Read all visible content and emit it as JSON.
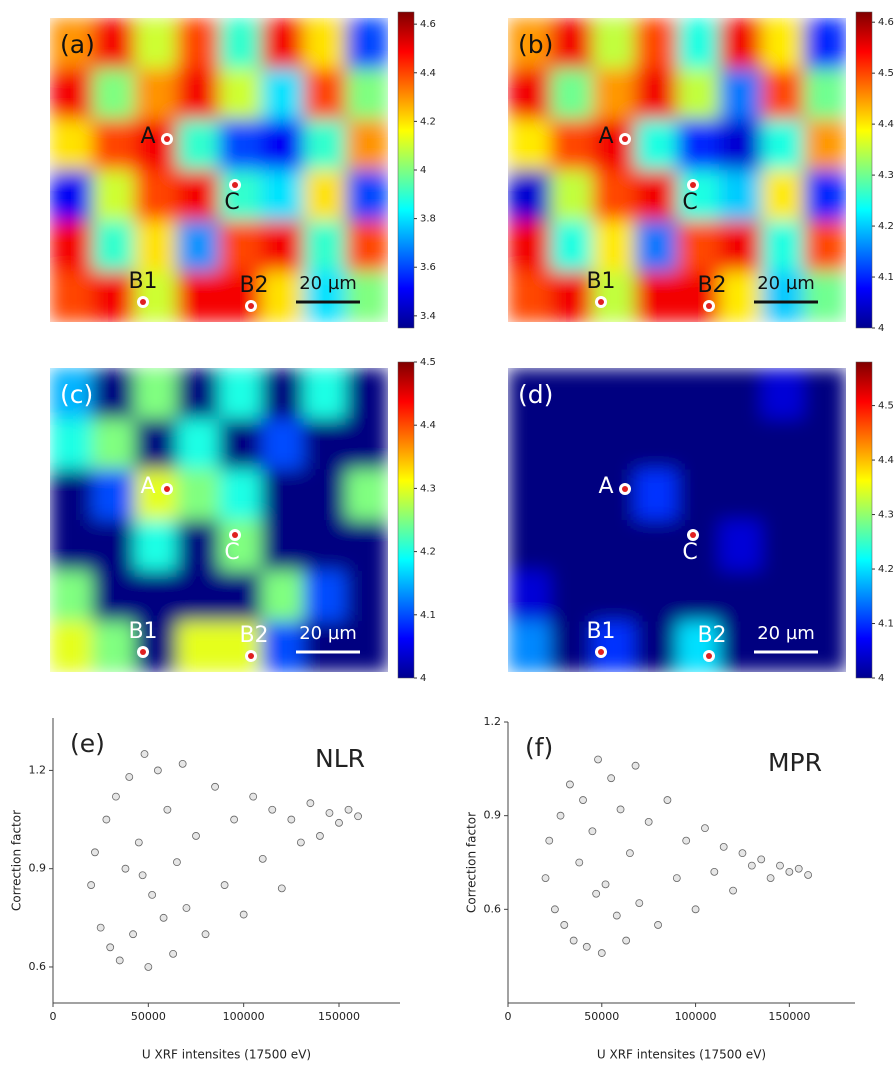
{
  "chart_data": [
    {
      "type": "heatmap",
      "label": "(a)",
      "annotations": [
        "A",
        "C",
        "B1",
        "B2"
      ],
      "scale_bar": "20 µm",
      "annotation_color": "#111111",
      "clim": [
        3.35,
        4.65
      ],
      "cticks": [
        3.4,
        3.6,
        3.8,
        4,
        4.2,
        4.4,
        4.6
      ],
      "z": [
        [
          4.3,
          4.5,
          4.1,
          4.4,
          3.9,
          4.5,
          4.2,
          3.6
        ],
        [
          4.5,
          4.0,
          4.3,
          4.5,
          4.1,
          3.8,
          4.4,
          4.0
        ],
        [
          4.2,
          4.4,
          4.5,
          3.9,
          3.6,
          3.5,
          3.9,
          4.3
        ],
        [
          3.5,
          4.1,
          4.4,
          4.5,
          3.9,
          3.8,
          4.2,
          3.6
        ],
        [
          4.5,
          3.9,
          4.2,
          3.7,
          4.4,
          4.5,
          3.9,
          4.4
        ],
        [
          4.4,
          4.5,
          4.1,
          4.5,
          4.5,
          4.2,
          3.8,
          4.0
        ]
      ]
    },
    {
      "type": "heatmap",
      "label": "(b)",
      "annotations": [
        "A",
        "C",
        "B1",
        "B2"
      ],
      "scale_bar": "20 µm",
      "annotation_color": "#111111",
      "clim": [
        4,
        4.62
      ],
      "cticks": [
        4,
        4.1,
        4.2,
        4.3,
        4.4,
        4.5,
        4.6
      ],
      "z": [
        [
          4.45,
          4.55,
          4.35,
          4.5,
          4.25,
          4.55,
          4.4,
          4.1
        ],
        [
          4.55,
          4.3,
          4.45,
          4.55,
          4.35,
          4.15,
          4.5,
          4.3
        ],
        [
          4.4,
          4.5,
          4.55,
          4.25,
          4.1,
          4.05,
          4.25,
          4.45
        ],
        [
          4.05,
          4.35,
          4.5,
          4.55,
          4.25,
          4.2,
          4.4,
          4.1
        ],
        [
          4.55,
          4.25,
          4.4,
          4.15,
          4.5,
          4.55,
          4.25,
          4.5
        ],
        [
          4.5,
          4.55,
          4.35,
          4.55,
          4.55,
          4.4,
          4.2,
          4.3
        ]
      ]
    },
    {
      "type": "heatmap",
      "label": "(c)",
      "annotations": [
        "A",
        "C",
        "B1",
        "B2"
      ],
      "scale_bar": "20 µm",
      "annotation_color": "#ffffff",
      "clim": [
        4,
        4.5
      ],
      "cticks": [
        4,
        4.1,
        4.2,
        4.3,
        4.4,
        4.5
      ],
      "z": [
        [
          4.15,
          4.0,
          4.25,
          4.0,
          4.2,
          4.0,
          4.2,
          4.0
        ],
        [
          4.2,
          4.25,
          4.0,
          4.2,
          4.0,
          4.1,
          4.0,
          4.0
        ],
        [
          4.0,
          4.1,
          4.3,
          4.25,
          4.2,
          4.0,
          4.0,
          4.25
        ],
        [
          4.0,
          4.0,
          4.2,
          4.0,
          4.25,
          4.0,
          4.0,
          4.0
        ],
        [
          4.25,
          4.0,
          4.0,
          4.0,
          4.0,
          4.25,
          4.1,
          4.0
        ],
        [
          4.3,
          4.25,
          4.0,
          4.3,
          4.3,
          4.1,
          4.0,
          4.0
        ]
      ]
    },
    {
      "type": "heatmap",
      "label": "(d)",
      "annotations": [
        "A",
        "C",
        "B1",
        "B2"
      ],
      "scale_bar": "20 µm",
      "annotation_color": "#ffffff",
      "clim": [
        4,
        4.58
      ],
      "cticks": [
        4,
        4.1,
        4.2,
        4.3,
        4.4,
        4.5
      ],
      "z": [
        [
          4.0,
          4.0,
          4.0,
          4.0,
          4.0,
          4.0,
          4.05,
          4.0
        ],
        [
          4.0,
          4.0,
          4.0,
          4.0,
          4.0,
          4.0,
          4.0,
          4.0
        ],
        [
          4.0,
          4.0,
          4.0,
          4.1,
          4.0,
          4.0,
          4.0,
          4.0
        ],
        [
          4.0,
          4.0,
          4.0,
          4.0,
          4.0,
          4.05,
          4.0,
          4.0
        ],
        [
          4.05,
          4.0,
          4.0,
          4.0,
          4.0,
          4.0,
          4.0,
          4.0
        ],
        [
          4.15,
          4.0,
          4.1,
          4.0,
          4.2,
          4.0,
          4.0,
          4.0
        ]
      ]
    },
    {
      "type": "scatter",
      "label": "(e)",
      "title": "NLR",
      "xlabel": "U XRF intensites (17500 eV)",
      "ylabel": "Correction factor",
      "xlim": [
        0,
        182000
      ],
      "xticks": [
        0,
        50000,
        100000,
        150000
      ],
      "ylim": [
        0.49,
        1.36
      ],
      "yticks": [
        0.6,
        0.9,
        1.2
      ],
      "color": "#666666",
      "x": [
        20000,
        22000,
        25000,
        28000,
        30000,
        33000,
        35000,
        38000,
        40000,
        42000,
        45000,
        48000,
        50000,
        52000,
        55000,
        58000,
        60000,
        63000,
        65000,
        68000,
        70000,
        75000,
        80000,
        85000,
        90000,
        95000,
        100000,
        105000,
        110000,
        115000,
        120000,
        125000,
        130000,
        135000,
        140000,
        145000,
        150000,
        155000,
        160000,
        47000
      ],
      "values": [
        0.85,
        0.95,
        0.72,
        1.05,
        0.66,
        1.12,
        0.62,
        0.9,
        1.18,
        0.7,
        0.98,
        1.25,
        0.6,
        0.82,
        1.2,
        0.75,
        1.08,
        0.64,
        0.92,
        1.22,
        0.78,
        1.0,
        0.7,
        1.15,
        0.85,
        1.05,
        0.76,
        1.12,
        0.93,
        1.08,
        0.84,
        1.05,
        0.98,
        1.1,
        1.0,
        1.07,
        1.04,
        1.08,
        1.06,
        0.88
      ]
    },
    {
      "type": "scatter",
      "label": "(f)",
      "title": "MPR",
      "xlabel": "U XRF intensites (17500 eV)",
      "ylabel": "Correction factor",
      "xlim": [
        0,
        185000
      ],
      "xticks": [
        0,
        50000,
        100000,
        150000
      ],
      "ylim": [
        0.3,
        1.2
      ],
      "yticks": [
        0.6,
        0.9,
        1.2
      ],
      "color": "#666666",
      "x": [
        20000,
        22000,
        25000,
        28000,
        30000,
        33000,
        35000,
        38000,
        40000,
        42000,
        45000,
        48000,
        50000,
        52000,
        55000,
        58000,
        60000,
        63000,
        65000,
        68000,
        70000,
        75000,
        80000,
        85000,
        90000,
        95000,
        100000,
        105000,
        110000,
        115000,
        120000,
        125000,
        130000,
        135000,
        140000,
        145000,
        150000,
        155000,
        160000,
        47000
      ],
      "values": [
        0.7,
        0.82,
        0.6,
        0.9,
        0.55,
        1.0,
        0.5,
        0.75,
        0.95,
        0.48,
        0.85,
        1.08,
        0.46,
        0.68,
        1.02,
        0.58,
        0.92,
        0.5,
        0.78,
        1.06,
        0.62,
        0.88,
        0.55,
        0.95,
        0.7,
        0.82,
        0.6,
        0.86,
        0.72,
        0.8,
        0.66,
        0.78,
        0.74,
        0.76,
        0.7,
        0.74,
        0.72,
        0.73,
        0.71,
        0.65
      ]
    }
  ]
}
